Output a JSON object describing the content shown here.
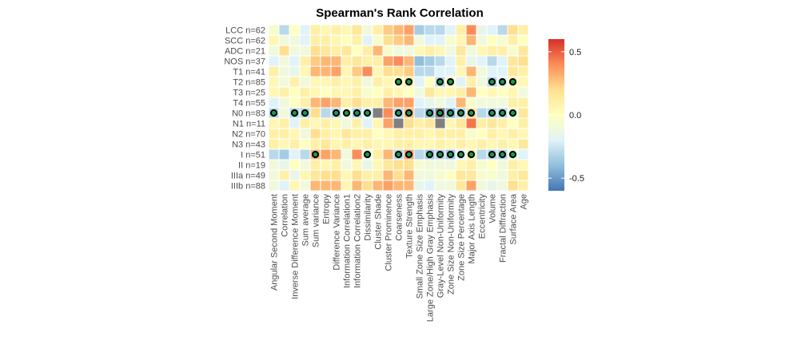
{
  "chart_data": {
    "type": "heatmap",
    "title": "Spearman's Rank Correlation",
    "rows": [
      "LCC n=62",
      "SCC n=62",
      "ADC n=21",
      "NOS n=37",
      "T1 n=41",
      "T2 n=85",
      "T3 n=25",
      "T4 n=55",
      "N0 n=83",
      "N1 n=11",
      "N2 n=70",
      "N3 n=43",
      "I n=51",
      "II n=19",
      "IIIa n=49",
      "IIIb n=88"
    ],
    "columns": [
      "Angular Second Moment",
      "Correlation",
      "Inverse Difference Moment",
      "Sum average",
      "Sum variance",
      "Entropy",
      "Difference Variance",
      "Information Correlation1",
      "Information Correlation2",
      "Dissimilarity",
      "Cluster Shade",
      "Cluster Prominence",
      "Coarseness",
      "Texture Strength",
      "Small Zone Size Emphasis",
      "Large Zone/High Gray Emphasis",
      "Gray-Level Non-Uniformity",
      "Zone Size Non-Uniformity",
      "Zone Size Percentage",
      "Major Axis Length",
      "Eccentricity",
      "Volume",
      "Fractal Diffraction",
      "Surface Area",
      "Age"
    ],
    "values": [
      [
        -0.05,
        -0.3,
        0.0,
        -0.2,
        0.1,
        0.05,
        0.1,
        0.05,
        0.15,
        -0.1,
        0.1,
        0.25,
        0.3,
        0.35,
        -0.35,
        -0.3,
        -0.3,
        -0.2,
        0.1,
        0.4,
        -0.15,
        -0.2,
        -0.3,
        0.2,
        0.1
      ],
      [
        0.05,
        -0.1,
        -0.1,
        -0.2,
        0.1,
        0.1,
        0.05,
        0.0,
        0.1,
        -0.2,
        -0.05,
        0.2,
        0.25,
        0.3,
        -0.1,
        -0.2,
        -0.2,
        -0.05,
        0.05,
        0.3,
        -0.1,
        0.0,
        -0.05,
        0.1,
        0.0
      ],
      [
        -0.1,
        0.2,
        -0.1,
        -0.1,
        0.2,
        0.15,
        0.1,
        0.15,
        0.0,
        0.1,
        0.3,
        -0.05,
        -0.1,
        -0.1,
        0.05,
        0.1,
        0.05,
        -0.1,
        0.15,
        -0.1,
        0.05,
        0.1,
        0.1,
        -0.05,
        0.15
      ],
      [
        -0.2,
        -0.1,
        -0.2,
        0.1,
        0.25,
        0.3,
        0.3,
        0.1,
        0.15,
        0.1,
        0.1,
        0.35,
        0.4,
        0.3,
        -0.4,
        -0.35,
        -0.3,
        -0.2,
        0.1,
        -0.15,
        -0.2,
        -0.3,
        -0.2,
        0.15,
        0.2
      ],
      [
        0.1,
        -0.1,
        -0.15,
        0.05,
        0.3,
        0.3,
        0.35,
        0.05,
        0.25,
        0.4,
        0.05,
        0.2,
        0.2,
        0.25,
        -0.3,
        -0.3,
        -0.2,
        -0.2,
        0.05,
        0.3,
        -0.1,
        -0.2,
        -0.2,
        0.15,
        0.1
      ],
      [
        0.05,
        -0.1,
        0.1,
        -0.1,
        0.05,
        0.05,
        0.1,
        0.05,
        0.1,
        -0.1,
        0.1,
        0.05,
        0.0,
        0.1,
        -0.2,
        0.0,
        -0.3,
        0.0,
        -0.2,
        0.1,
        -0.1,
        -0.3,
        -0.2,
        0.05,
        0.05
      ],
      [
        0.05,
        0.1,
        0.0,
        0.1,
        0.05,
        0.0,
        0.05,
        0.05,
        0.1,
        -0.05,
        0.0,
        0.1,
        0.05,
        0.0,
        -0.1,
        0.15,
        0.05,
        0.05,
        0.1,
        0.3,
        0.0,
        0.05,
        0.0,
        0.05,
        -0.1
      ],
      [
        -0.2,
        -0.1,
        0.0,
        0.1,
        0.3,
        0.35,
        0.3,
        0.1,
        0.2,
        0.1,
        0.1,
        0.3,
        0.35,
        0.35,
        -0.2,
        -0.15,
        -0.1,
        -0.2,
        0.3,
        -0.05,
        -0.1,
        -0.1,
        -0.1,
        0.1,
        0.1
      ],
      [
        -0.3,
        -0.1,
        -0.3,
        -0.3,
        0.2,
        -0.3,
        -0.3,
        -0.1,
        -0.3,
        -0.2,
        0.05,
        0.4,
        -0.3,
        0.3,
        -0.3,
        -0.4,
        -0.3,
        -0.4,
        -0.3,
        0.2,
        -0.3,
        -0.3,
        -0.3,
        -0.1,
        0.15
      ],
      [
        0.05,
        0.1,
        -0.2,
        0.1,
        0.05,
        0.1,
        0.05,
        -0.1,
        0.1,
        -0.2,
        0.05,
        0.35,
        0.0,
        0.2,
        0.1,
        0.15,
        -0.1,
        0.05,
        0.15,
        0.45,
        0.1,
        0.15,
        0.1,
        0.0,
        0.1
      ],
      [
        0.1,
        0.1,
        0.05,
        -0.1,
        0.2,
        0.1,
        0.05,
        0.15,
        0.1,
        0.1,
        0.0,
        0.05,
        0.1,
        0.1,
        0.1,
        0.05,
        0.1,
        0.1,
        0.1,
        -0.05,
        0.0,
        0.1,
        0.05,
        0.1,
        0.05
      ],
      [
        0.1,
        0.05,
        0.1,
        0.0,
        0.1,
        0.15,
        0.05,
        0.1,
        0.05,
        0.1,
        0.05,
        0.05,
        0.1,
        0.1,
        0.05,
        0.05,
        0.1,
        0.05,
        0.1,
        0.05,
        0.1,
        0.05,
        0.1,
        0.05,
        0.15
      ],
      [
        -0.3,
        -0.35,
        -0.2,
        -0.3,
        0.3,
        0.35,
        0.3,
        -0.1,
        0.4,
        -0.1,
        0.1,
        0.3,
        -0.3,
        0.35,
        -0.3,
        -0.35,
        -0.3,
        -0.35,
        -0.2,
        0.1,
        -0.3,
        -0.3,
        -0.3,
        -0.1,
        -0.2
      ],
      [
        -0.1,
        -0.15,
        0.0,
        -0.1,
        0.1,
        0.05,
        0.1,
        -0.1,
        0.05,
        -0.15,
        0.05,
        0.15,
        0.2,
        0.2,
        -0.05,
        -0.1,
        -0.1,
        -0.1,
        0.05,
        0.1,
        -0.05,
        0.0,
        -0.1,
        0.1,
        0.05
      ],
      [
        -0.1,
        0.1,
        -0.15,
        0.05,
        0.15,
        0.2,
        0.2,
        0.05,
        0.2,
        0.1,
        0.1,
        0.3,
        0.2,
        0.3,
        -0.1,
        -0.1,
        -0.05,
        0.0,
        0.15,
        0.15,
        -0.05,
        -0.05,
        -0.1,
        0.1,
        0.15
      ],
      [
        -0.1,
        -0.2,
        0.05,
        -0.1,
        0.3,
        0.3,
        0.3,
        0.05,
        0.3,
        0.2,
        0.3,
        0.35,
        0.3,
        0.3,
        -0.15,
        -0.2,
        -0.1,
        -0.1,
        0.15,
        0.35,
        -0.1,
        -0.15,
        -0.1,
        0.2,
        0.1
      ]
    ],
    "missing": [
      [
        8,
        10
      ],
      [
        8,
        16
      ],
      [
        9,
        12
      ],
      [
        9,
        16
      ]
    ],
    "significant": [
      [
        5,
        12
      ],
      [
        5,
        13
      ],
      [
        5,
        16
      ],
      [
        5,
        17
      ],
      [
        5,
        21
      ],
      [
        5,
        22
      ],
      [
        5,
        23
      ],
      [
        8,
        0
      ],
      [
        8,
        2
      ],
      [
        8,
        3
      ],
      [
        8,
        6
      ],
      [
        8,
        7
      ],
      [
        8,
        8
      ],
      [
        8,
        9
      ],
      [
        8,
        12
      ],
      [
        8,
        13
      ],
      [
        8,
        15
      ],
      [
        8,
        16
      ],
      [
        8,
        17
      ],
      [
        8,
        18
      ],
      [
        8,
        19
      ],
      [
        8,
        21
      ],
      [
        8,
        22
      ],
      [
        8,
        23
      ],
      [
        12,
        4
      ],
      [
        12,
        9
      ],
      [
        12,
        12
      ],
      [
        12,
        13
      ],
      [
        12,
        15
      ],
      [
        12,
        16
      ],
      [
        12,
        17
      ],
      [
        12,
        18
      ],
      [
        12,
        19
      ],
      [
        12,
        21
      ],
      [
        12,
        22
      ],
      [
        12,
        23
      ]
    ],
    "legend": {
      "ticks": [
        0.5,
        0.0,
        -0.5
      ],
      "tick_labels": [
        "0.5",
        "0.0",
        "-0.5"
      ],
      "range": [
        -0.6,
        0.6
      ],
      "colors": [
        "#4575b4",
        "#91bfdb",
        "#e0f3f8",
        "#ffffbf",
        "#fee090",
        "#fc8d59",
        "#d73027"
      ],
      "position": "right"
    },
    "missing_color": "#808080",
    "marker_color": "#000000",
    "marker_fill": "#1a9850"
  }
}
